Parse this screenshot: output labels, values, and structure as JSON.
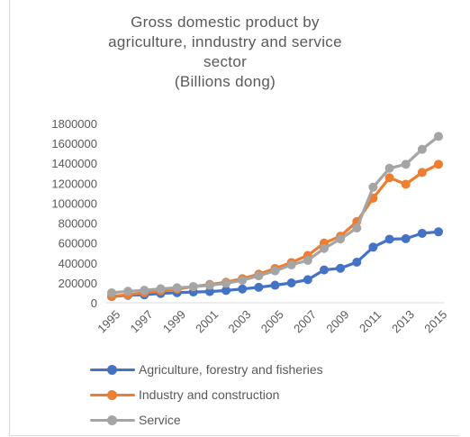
{
  "chart_data": {
    "type": "line",
    "title_lines": [
      "Gross domestic product by",
      "agriculture, inndustry and service",
      "sector",
      "(Billions dong)"
    ],
    "x": [
      1995,
      1996,
      1997,
      1998,
      1999,
      2000,
      2001,
      2002,
      2003,
      2004,
      2005,
      2006,
      2007,
      2008,
      2009,
      2010,
      2011,
      2012,
      2013,
      2014,
      2015
    ],
    "x_tick_labels": [
      "1995",
      "1997",
      "1999",
      "2001",
      "2003",
      "2005",
      "2007",
      "2009",
      "2011",
      "2013",
      "2015"
    ],
    "ylim": [
      0,
      1800000
    ],
    "y_tick_labels": [
      "0",
      "200000",
      "400000",
      "600000",
      "800000",
      "1000000",
      "1200000",
      "1400000",
      "1600000",
      "1800000"
    ],
    "grid": false,
    "legend_position": "bottom",
    "series": [
      {
        "name": "Agriculture, forestry and fisheries",
        "color": "#4472c4",
        "values": [
          62000,
          75000,
          80000,
          93000,
          101000,
          108000,
          112000,
          123000,
          138000,
          155000,
          176000,
          199000,
          232000,
          329000,
          346000,
          407000,
          558000,
          638000,
          643000,
          697000,
          712000
        ]
      },
      {
        "name": "Industry and construction",
        "color": "#ed7d31",
        "values": [
          65000,
          80000,
          100000,
          118000,
          137000,
          162000,
          184000,
          206000,
          242000,
          287000,
          344000,
          404000,
          475000,
          599000,
          668000,
          815000,
          1050000,
          1255000,
          1190000,
          1308000,
          1390000
        ]
      },
      {
        "name": "Service",
        "color": "#a5a5a5",
        "values": [
          100000,
          115000,
          125000,
          140000,
          150000,
          160000,
          175000,
          195000,
          225000,
          270000,
          320000,
          380000,
          425000,
          545000,
          640000,
          750000,
          1160000,
          1350000,
          1390000,
          1540000,
          1670000
        ]
      }
    ]
  }
}
